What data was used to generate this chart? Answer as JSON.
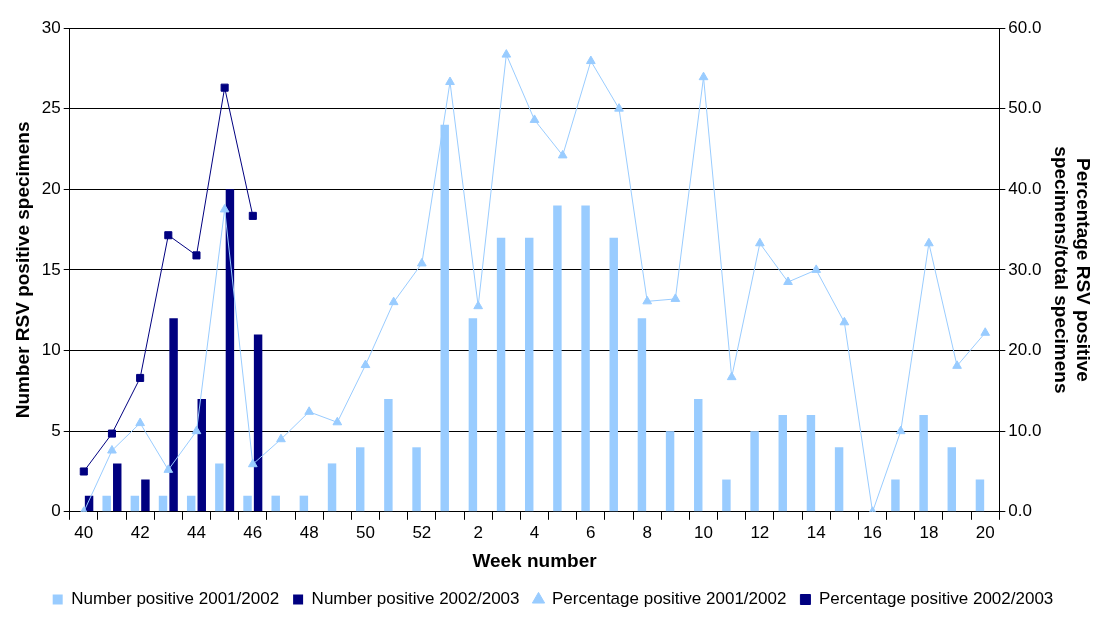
{
  "chart_data": {
    "type": "bar",
    "xlabel": "Week number",
    "ylabel": "Number RSV positive specimens",
    "y2label": "Percentage RSV positive specimens/total specimens",
    "categories": [
      "40",
      null,
      "42",
      null,
      "44",
      null,
      "46",
      null,
      "48",
      null,
      "50",
      null,
      "52",
      null,
      "2",
      null,
      "4",
      null,
      "6",
      null,
      "8",
      null,
      "10",
      null,
      "12",
      null,
      "14",
      null,
      "16",
      null,
      "18",
      null,
      "20"
    ],
    "series": [
      {
        "name": "Number positive 2001/2002",
        "color": "#99ccff",
        "values": [
          0,
          1,
          1,
          1,
          1,
          3,
          1,
          1,
          1,
          3,
          4,
          7,
          4,
          24,
          12,
          17,
          17,
          19,
          19,
          17,
          12,
          5,
          7,
          2,
          5,
          6,
          6,
          4,
          0,
          2,
          6,
          4,
          2
        ]
      },
      {
        "name": "Number positive 2002/2003",
        "color": "#000080",
        "values": [
          1,
          3,
          2,
          12,
          7,
          20,
          11,
          null,
          null,
          null,
          null,
          null,
          null,
          null,
          null,
          null,
          null,
          null,
          null,
          null,
          null,
          null,
          null,
          null,
          null,
          null,
          null,
          null,
          null,
          null,
          null,
          null,
          null
        ]
      },
      {
        "name": "Percentage positive 2001/2002",
        "type": "line",
        "axis": "y2",
        "marker": "triangle",
        "color": "#99ccff",
        "values": [
          0,
          7.6,
          11.0,
          5.2,
          10.0,
          37.5,
          5.9,
          9.0,
          12.4,
          11.1,
          18.2,
          26.0,
          30.8,
          53.3,
          25.5,
          56.7,
          48.6,
          44.2,
          55.9,
          50.0,
          26.1,
          26.4,
          53.9,
          16.7,
          33.3,
          28.5,
          30.0,
          23.5,
          0,
          10.0,
          33.3,
          18.1,
          22.2
        ]
      },
      {
        "name": "Percentage positive 2002/2003",
        "type": "line",
        "axis": "y2",
        "marker": "square",
        "color": "#000080",
        "values": [
          5.0,
          9.7,
          16.6,
          34.3,
          31.8,
          52.6,
          36.7,
          null,
          null,
          null,
          null,
          null,
          null,
          null,
          null,
          null,
          null,
          null,
          null,
          null,
          null,
          null,
          null,
          null,
          null,
          null,
          null,
          null,
          null,
          null,
          null,
          null,
          null
        ]
      }
    ],
    "ylim": [
      0,
      30
    ],
    "yticks": [
      0,
      5,
      10,
      15,
      20,
      25,
      30
    ],
    "y2lim": [
      0,
      60
    ],
    "y2ticks": [
      {
        "value": 0,
        "label": "0.0"
      },
      {
        "value": 10,
        "label": "10.0"
      },
      {
        "value": 20,
        "label": "20.0"
      },
      {
        "value": 30,
        "label": "30.0"
      },
      {
        "value": 40,
        "label": "40.0"
      },
      {
        "value": 50,
        "label": "50.0"
      },
      {
        "value": 60,
        "label": "60.0"
      }
    ],
    "grid": "y",
    "legend": "bottom"
  }
}
